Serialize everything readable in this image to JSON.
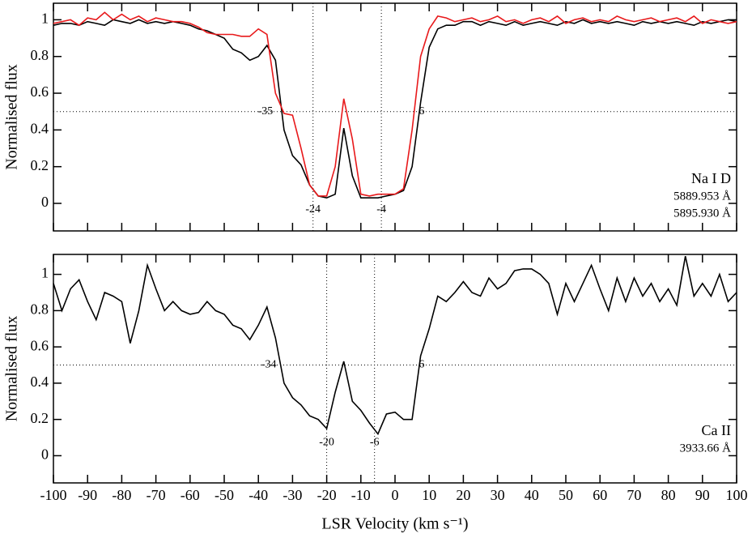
{
  "chart_data": [
    {
      "type": "line",
      "y_label": "Normalised flux",
      "legend_title": "Na I D",
      "xtick_labels": false,
      "x": [
        -100,
        -97.5,
        -95,
        -92.5,
        -90,
        -87.5,
        -85,
        -82.5,
        -80,
        -77.5,
        -75,
        -72.5,
        -70,
        -67.5,
        -65,
        -62.5,
        -60,
        -57.5,
        -55,
        -52.5,
        -50,
        -47.5,
        -45,
        -42.5,
        -40,
        -37.5,
        -35,
        -32.5,
        -30,
        -27.5,
        -25,
        -22.5,
        -20,
        -17.5,
        -15,
        -12.5,
        -10,
        -7.5,
        -5,
        -2.5,
        0,
        2.5,
        5,
        7.5,
        10,
        12.5,
        15,
        17.5,
        20,
        22.5,
        25,
        27.5,
        30,
        32.5,
        35,
        37.5,
        40,
        42.5,
        45,
        47.5,
        50,
        52.5,
        55,
        57.5,
        60,
        62.5,
        65,
        67.5,
        70,
        72.5,
        75,
        77.5,
        80,
        82.5,
        85,
        87.5,
        90,
        92.5,
        95,
        97.5,
        100
      ],
      "series": [
        {
          "name": "5889.953 Å",
          "color": "#000000",
          "values": [
            0.97,
            0.98,
            0.98,
            0.97,
            0.99,
            0.98,
            0.97,
            1.0,
            0.99,
            0.98,
            1.0,
            0.98,
            0.99,
            0.98,
            0.99,
            0.98,
            0.97,
            0.95,
            0.94,
            0.92,
            0.9,
            0.84,
            0.82,
            0.78,
            0.8,
            0.86,
            0.78,
            0.4,
            0.26,
            0.21,
            0.1,
            0.04,
            0.03,
            0.05,
            0.41,
            0.15,
            0.03,
            0.03,
            0.03,
            0.04,
            0.05,
            0.07,
            0.2,
            0.55,
            0.85,
            0.95,
            0.97,
            0.97,
            0.99,
            0.99,
            0.97,
            0.99,
            0.98,
            0.97,
            0.99,
            0.97,
            0.98,
            0.99,
            0.98,
            0.97,
            0.99,
            0.98,
            1.0,
            0.98,
            0.99,
            0.98,
            0.99,
            0.98,
            0.97,
            0.99,
            0.98,
            0.99,
            0.98,
            0.99,
            0.98,
            0.97,
            0.99,
            0.98,
            0.99,
            1.0,
            0.99
          ]
        },
        {
          "name": "5895.930 Å",
          "color": "#e8191b",
          "values": [
            0.98,
            0.99,
            1.0,
            0.97,
            1.01,
            1.0,
            1.04,
            1.0,
            1.03,
            1.0,
            1.02,
            0.99,
            1.01,
            1.0,
            0.99,
            0.99,
            0.98,
            0.96,
            0.93,
            0.92,
            0.92,
            0.92,
            0.91,
            0.91,
            0.95,
            0.92,
            0.6,
            0.49,
            0.48,
            0.3,
            0.1,
            0.04,
            0.04,
            0.2,
            0.57,
            0.35,
            0.05,
            0.04,
            0.05,
            0.05,
            0.05,
            0.08,
            0.4,
            0.8,
            0.95,
            1.02,
            1.01,
            0.99,
            1.0,
            1.01,
            0.99,
            1.0,
            1.02,
            0.99,
            1.0,
            0.98,
            1.0,
            1.01,
            0.99,
            1.02,
            0.98,
            1.0,
            1.01,
            0.99,
            1.0,
            0.99,
            1.02,
            1.0,
            0.99,
            1.0,
            1.01,
            0.99,
            1.0,
            1.01,
            0.99,
            1.02,
            0.98,
            1.0,
            0.99,
            0.98,
            0.99
          ]
        }
      ],
      "xlim": [
        -100,
        100
      ],
      "xticks": [
        -100,
        -90,
        -80,
        -70,
        -60,
        -50,
        -40,
        -30,
        -20,
        -10,
        0,
        10,
        20,
        30,
        40,
        50,
        60,
        70,
        80,
        90,
        100
      ],
      "ylim": [
        -0.15,
        1.09
      ],
      "yticks": [
        0,
        0.2,
        0.4,
        0.6,
        0.8,
        1
      ],
      "hline": 0.5,
      "half_points": [
        -35,
        6
      ],
      "vlines": [
        -24,
        -4
      ]
    },
    {
      "type": "line",
      "y_label": "Normalised flux",
      "x_label": "LSR Velocity (km s⁻¹)",
      "legend_title": "Ca II",
      "xtick_labels": true,
      "x": [
        -100,
        -97.5,
        -95,
        -92.5,
        -90,
        -87.5,
        -85,
        -82.5,
        -80,
        -77.5,
        -75,
        -72.5,
        -70,
        -67.5,
        -65,
        -62.5,
        -60,
        -57.5,
        -55,
        -52.5,
        -50,
        -47.5,
        -45,
        -42.5,
        -40,
        -37.5,
        -35,
        -32.5,
        -30,
        -27.5,
        -25,
        -22.5,
        -20,
        -17.5,
        -15,
        -12.5,
        -10,
        -7.5,
        -5,
        -2.5,
        0,
        2.5,
        5,
        7.5,
        10,
        12.5,
        15,
        17.5,
        20,
        22.5,
        25,
        27.5,
        30,
        32.5,
        35,
        37.5,
        40,
        42.5,
        45,
        47.5,
        50,
        52.5,
        55,
        57.5,
        60,
        62.5,
        65,
        67.5,
        70,
        72.5,
        75,
        77.5,
        80,
        82.5,
        85,
        87.5,
        90,
        92.5,
        95,
        97.5,
        100
      ],
      "series": [
        {
          "name": "3933.66 Å",
          "color": "#000000",
          "values": [
            0.95,
            0.8,
            0.92,
            0.97,
            0.85,
            0.75,
            0.9,
            0.88,
            0.85,
            0.62,
            0.8,
            1.05,
            0.92,
            0.8,
            0.85,
            0.8,
            0.78,
            0.79,
            0.85,
            0.8,
            0.78,
            0.72,
            0.7,
            0.64,
            0.72,
            0.82,
            0.65,
            0.4,
            0.32,
            0.28,
            0.22,
            0.2,
            0.15,
            0.35,
            0.52,
            0.3,
            0.25,
            0.18,
            0.12,
            0.23,
            0.24,
            0.2,
            0.2,
            0.55,
            0.7,
            0.88,
            0.85,
            0.9,
            0.96,
            0.9,
            0.88,
            0.98,
            0.92,
            0.95,
            1.02,
            1.03,
            1.03,
            1.0,
            0.95,
            0.78,
            0.95,
            0.85,
            0.95,
            1.05,
            0.92,
            0.8,
            0.98,
            0.85,
            0.98,
            0.88,
            0.95,
            0.85,
            0.92,
            0.83,
            1.1,
            0.88,
            0.95,
            0.88,
            1.0,
            0.85,
            0.9
          ]
        }
      ],
      "xlim": [
        -100,
        100
      ],
      "xticks": [
        -100,
        -90,
        -80,
        -70,
        -60,
        -50,
        -40,
        -30,
        -20,
        -10,
        0,
        10,
        20,
        30,
        40,
        50,
        60,
        70,
        80,
        90,
        100
      ],
      "ylim": [
        -0.15,
        1.11
      ],
      "yticks": [
        0,
        0.2,
        0.4,
        0.6,
        0.8,
        1
      ],
      "hline": 0.5,
      "half_points": [
        -34,
        6
      ],
      "vlines": [
        -20,
        -6
      ]
    }
  ]
}
